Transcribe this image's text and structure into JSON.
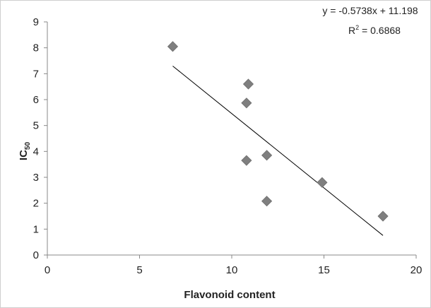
{
  "chart_data": {
    "type": "scatter",
    "title": "",
    "xlabel": "Flavonoid content",
    "ylabel_main": "IC",
    "ylabel_sub": "50",
    "xlim": [
      0,
      20
    ],
    "ylim": [
      0,
      9
    ],
    "xticks": [
      0,
      5,
      10,
      15,
      20
    ],
    "yticks": [
      0,
      1,
      2,
      3,
      4,
      5,
      6,
      7,
      8,
      9
    ],
    "grid": false,
    "legend": "none",
    "marker": "diamond",
    "marker_color": "#7f7f7f",
    "points": [
      {
        "x": 6.8,
        "y": 8.05
      },
      {
        "x": 10.9,
        "y": 6.6
      },
      {
        "x": 10.8,
        "y": 5.87
      },
      {
        "x": 11.9,
        "y": 3.85
      },
      {
        "x": 10.8,
        "y": 3.65
      },
      {
        "x": 11.9,
        "y": 2.08
      },
      {
        "x": 14.9,
        "y": 2.8
      },
      {
        "x": 18.2,
        "y": 1.5
      }
    ],
    "trendline": {
      "type": "linear",
      "slope": -0.5738,
      "intercept": 11.198,
      "x_range": [
        6.8,
        18.2
      ],
      "equation_text": "y = -0.5738x + 11.198",
      "r2_label": "R",
      "r2_sup": "2",
      "r2_value": " = 0.6868"
    }
  }
}
